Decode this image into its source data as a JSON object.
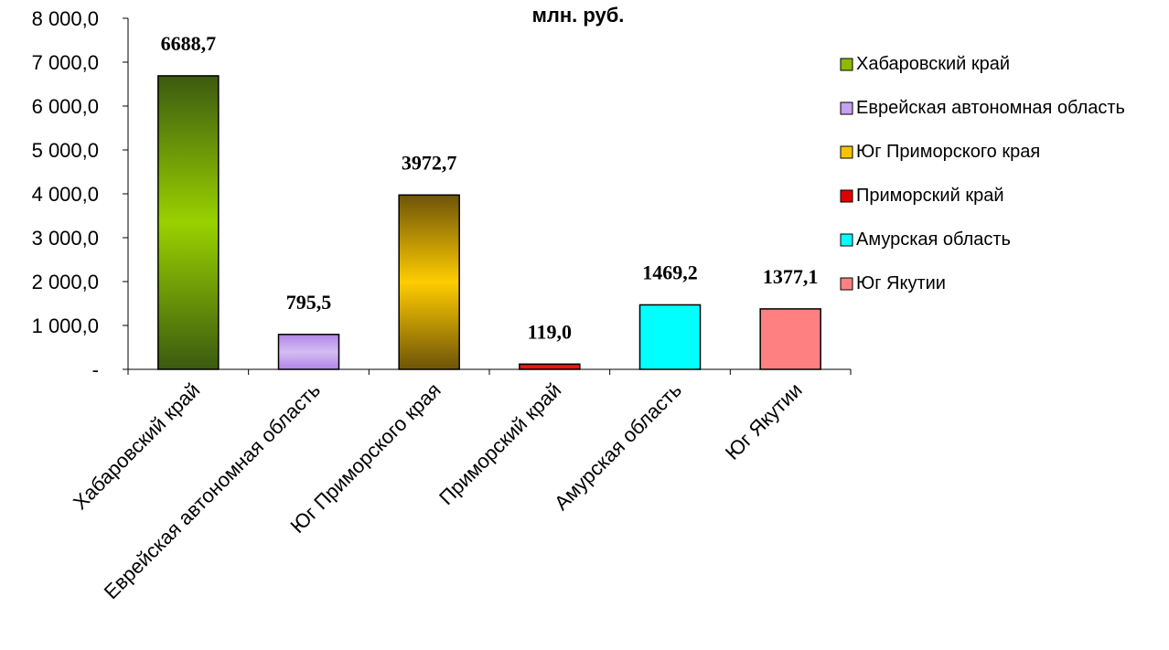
{
  "chart_data": {
    "type": "bar",
    "title": "млн. руб.",
    "categories": [
      "Хабаровский край",
      "Еврейская автономная область",
      "Юг Приморского края",
      "Приморский край",
      "Амурская область",
      "Юг Якутии"
    ],
    "values": [
      6688.7,
      795.5,
      3972.7,
      119.0,
      1469.2,
      1377.1
    ],
    "value_labels": [
      "6688,7",
      "795,5",
      "3972,7",
      "119,0",
      "1469,2",
      "1377,1"
    ],
    "ylim": [
      0,
      8000
    ],
    "y_ticks": [
      {
        "value": 0,
        "label": "-"
      },
      {
        "value": 1000,
        "label": "1 000,0"
      },
      {
        "value": 2000,
        "label": "2 000,0"
      },
      {
        "value": 3000,
        "label": "3 000,0"
      },
      {
        "value": 4000,
        "label": "4 000,0"
      },
      {
        "value": 5000,
        "label": "5 000,0"
      },
      {
        "value": 6000,
        "label": "6 000,0"
      },
      {
        "value": 7000,
        "label": "7 000,0"
      },
      {
        "value": 8000,
        "label": "8 000,0"
      }
    ],
    "colors": [
      "#8fb800",
      "#c3a2ee",
      "#f5c300",
      "#e00000",
      "#00ffff",
      "#ff8080"
    ],
    "gradients": [
      {
        "edge": "#3c5a10",
        "mid": "#99d100"
      },
      {
        "edge": "#b284e8",
        "mid": "#d4bdf3"
      },
      {
        "edge": "#6e5408",
        "mid": "#ffcc00"
      },
      {
        "edge": "#c00000",
        "mid": "#ff1a1a"
      },
      {
        "edge": "#00ffff",
        "mid": "#00ffff"
      },
      {
        "edge": "#ff8080",
        "mid": "#ff8080"
      }
    ],
    "legend": {
      "position": "right",
      "entries": [
        "Хабаровский край",
        "Еврейская автономная область",
        "Юг Приморского края",
        "Приморский край",
        "Амурская область",
        "Юг Якутии"
      ]
    },
    "grid": false
  }
}
